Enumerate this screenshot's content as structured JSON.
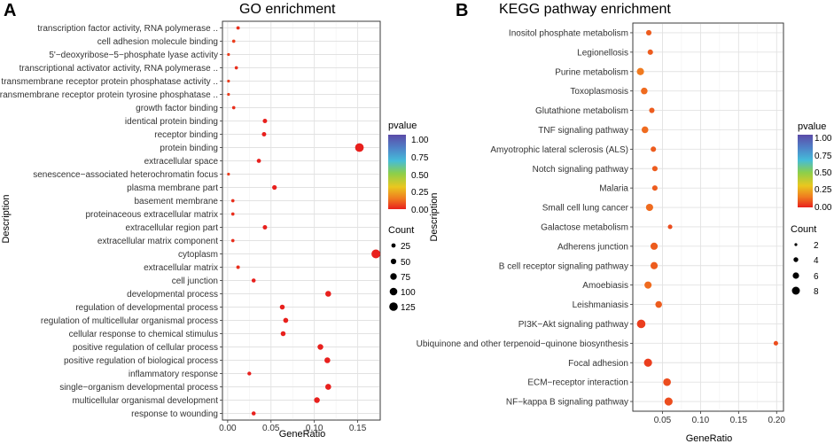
{
  "panels": [
    {
      "letter": "A",
      "title": "GO enrichment",
      "xlabel": "GeneRatio",
      "ylabel": "Description",
      "legend_color_title": "pvalue",
      "legend_color_ticks": [
        "1.00",
        "0.75",
        "0.50",
        "0.25",
        "0.00"
      ],
      "legend_size_title": "Count",
      "legend_size_ticks": [
        "25",
        "50",
        "75",
        "100",
        "125"
      ],
      "x_ticks": [
        "0.00",
        "0.05",
        "0.10",
        "0.15"
      ]
    },
    {
      "letter": "B",
      "title": "KEGG pathway enrichment",
      "xlabel": "GeneRatio",
      "ylabel": "Description",
      "legend_color_title": "pvalue",
      "legend_color_ticks": [
        "1.00",
        "0.75",
        "0.50",
        "0.25",
        "0.00"
      ],
      "legend_size_title": "Count",
      "legend_size_ticks": [
        "2",
        "4",
        "6",
        "8"
      ],
      "x_ticks": [
        "0.05",
        "0.10",
        "0.15",
        "0.20"
      ]
    }
  ],
  "chart_data": [
    {
      "type": "scatter",
      "title": "GO enrichment",
      "xlabel": "GeneRatio",
      "ylabel": "Description",
      "xlim": [
        -0.006,
        0.176
      ],
      "x_ticks": [
        0.0,
        0.05,
        0.1,
        0.15
      ],
      "color_scale": {
        "variable": "pvalue",
        "range": [
          0.0,
          1.0
        ]
      },
      "size_scale": {
        "variable": "Count",
        "legend_values": [
          25,
          50,
          75,
          100,
          125
        ]
      },
      "categories": [
        "transcription factor activity, RNA polymerase ..",
        "cell adhesion molecule binding",
        "5'−deoxyribose−5−phosphate lyase activity",
        "transcriptional activator activity, RNA polymerase ..",
        "transmembrane receptor protein phosphatase activity ..",
        "transmembrane receptor protein tyrosine phosphatase ..",
        "growth factor binding",
        "identical protein binding",
        "receptor binding",
        "protein binding",
        "extracellular space",
        "senescence−associated heterochromatin focus",
        "plasma membrane part",
        "basement membrane",
        "proteinaceous extracellular matrix",
        "extracellular region part",
        "extracellular matrix component",
        "cytoplasm",
        "extracellular matrix",
        "cell junction",
        "developmental process",
        "regulation of developmental process",
        "regulation of multicellular organismal process",
        "cellular response to chemical stimulus",
        "positive regulation of cellular process",
        "positive regulation of biological process",
        "inflammatory response",
        "single−organism developmental process",
        "multicellular organismal development",
        "response to wounding"
      ],
      "x": [
        0.012,
        0.007,
        0.001,
        0.01,
        0.001,
        0.001,
        0.007,
        0.043,
        0.042,
        0.152,
        0.036,
        0.001,
        0.054,
        0.006,
        0.006,
        0.043,
        0.006,
        0.171,
        0.012,
        0.03,
        0.116,
        0.063,
        0.067,
        0.064,
        0.107,
        0.115,
        0.025,
        0.116,
        0.103,
        0.03
      ],
      "count": [
        4,
        3,
        1,
        3,
        1,
        1,
        3,
        14,
        14,
        130,
        12,
        1,
        18,
        3,
        3,
        14,
        3,
        140,
        5,
        10,
        40,
        22,
        24,
        22,
        38,
        40,
        8,
        42,
        38,
        10
      ],
      "pvalue": [
        0.01,
        0.02,
        0.02,
        0.01,
        0.02,
        0.02,
        0.01,
        0.0,
        0.0,
        0.0,
        0.0,
        0.02,
        0.0,
        0.01,
        0.01,
        0.0,
        0.01,
        0.0,
        0.01,
        0.0,
        0.0,
        0.0,
        0.0,
        0.0,
        0.0,
        0.0,
        0.0,
        0.0,
        0.0,
        0.0
      ]
    },
    {
      "type": "scatter",
      "title": "KEGG pathway enrichment",
      "xlabel": "GeneRatio",
      "ylabel": "Description",
      "xlim": [
        0.011,
        0.209
      ],
      "x_ticks": [
        0.05,
        0.1,
        0.15,
        0.2
      ],
      "color_scale": {
        "variable": "pvalue",
        "range": [
          0.0,
          1.0
        ]
      },
      "size_scale": {
        "variable": "Count",
        "legend_values": [
          2,
          4,
          6,
          8
        ]
      },
      "categories": [
        "Inositol phosphate metabolism",
        "Legionellosis",
        "Purine metabolism",
        "Toxoplasmosis",
        "Glutathione metabolism",
        "TNF signaling pathway",
        "Amyotrophic lateral sclerosis (ALS)",
        "Notch signaling pathway",
        "Malaria",
        "Small cell lung cancer",
        "Galactose metabolism",
        "Adherens junction",
        "B cell receptor signaling pathway",
        "Amoebiasis",
        "Leishmaniasis",
        "PI3K−Akt signaling pathway",
        "Ubiquinone and other terpenoid−quinone biosynthesis",
        "Focal adhesion",
        "ECM−receptor interaction",
        "NF−kappa B signaling pathway"
      ],
      "x": [
        0.032,
        0.034,
        0.021,
        0.026,
        0.036,
        0.027,
        0.038,
        0.04,
        0.04,
        0.033,
        0.06,
        0.039,
        0.039,
        0.031,
        0.045,
        0.022,
        0.199,
        0.031,
        0.056,
        0.058
      ],
      "count": [
        2,
        2,
        5,
        4,
        2,
        4,
        2,
        2,
        2,
        5,
        1,
        5,
        5,
        5,
        4,
        8,
        1,
        7,
        6,
        7
      ],
      "pvalue": [
        0.04,
        0.04,
        0.06,
        0.05,
        0.04,
        0.05,
        0.04,
        0.04,
        0.04,
        0.05,
        0.03,
        0.04,
        0.04,
        0.05,
        0.04,
        0.02,
        0.03,
        0.02,
        0.03,
        0.03
      ]
    }
  ]
}
